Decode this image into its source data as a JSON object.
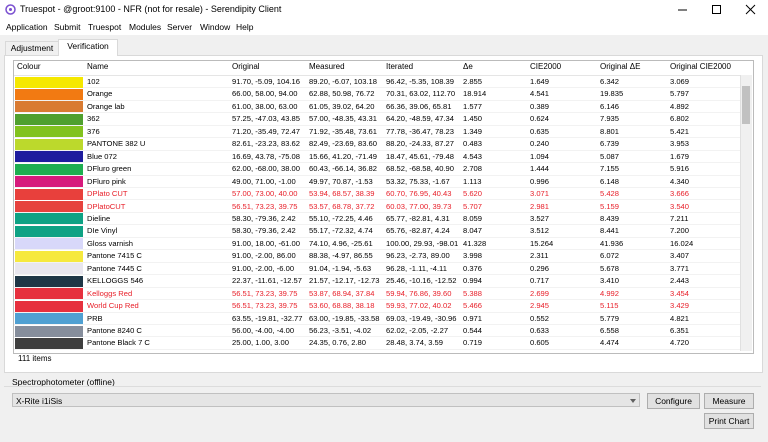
{
  "window": {
    "title": "Truespot - @groot:9100 - NFR (not for resale) - Serendipity Client"
  },
  "menu": [
    "Application",
    "Submit",
    "Truespot",
    "Modules",
    "Server",
    "Window",
    "Help"
  ],
  "tabs": {
    "items": [
      "Adjustment",
      "Verification"
    ],
    "active": 1
  },
  "table": {
    "columns": [
      "Colour",
      "Name",
      "Original",
      "Measured",
      "Iterated",
      "Δe",
      "CIE2000",
      "Original ΔE",
      "Original CIE2000"
    ],
    "rows": [
      {
        "swatch": "#f5e800",
        "cells": [
          "102",
          "91.70, -5.09, 104.16",
          "89.20, -6.07, 103.18",
          "96.42, -5.35, 108.39",
          "2.855",
          "1.649",
          "6.342",
          "3.069"
        ]
      },
      {
        "swatch": "#f27a12",
        "cells": [
          "Orange",
          "66.00, 58.00, 94.00",
          "62.88, 50.98, 76.72",
          "70.31, 63.02, 112.70",
          "18.914",
          "4.541",
          "19.835",
          "5.797"
        ]
      },
      {
        "swatch": "#d97b32",
        "cells": [
          "Orange lab",
          "61.00, 38.00, 63.00",
          "61.05, 39.02, 64.20",
          "66.36, 39.06, 65.81",
          "1.577",
          "0.389",
          "6.146",
          "4.892"
        ]
      },
      {
        "swatch": "#4fa02e",
        "cells": [
          "362",
          "57.25, -47.03, 43.85",
          "57.00, -48.35, 43.31",
          "64.20, -48.59, 47.34",
          "1.450",
          "0.624",
          "7.935",
          "6.802"
        ]
      },
      {
        "swatch": "#82c21e",
        "cells": [
          "376",
          "71.20, -35.49, 72.47",
          "71.92, -35.48, 73.61",
          "77.78, -36.47, 78.23",
          "1.349",
          "0.635",
          "8.801",
          "5.421"
        ]
      },
      {
        "swatch": "#bcd92c",
        "cells": [
          "PANTONE 382 U",
          "82.61, -23.23, 83.62",
          "82.49, -23.69, 83.60",
          "88.20, -24.33, 87.27",
          "0.483",
          "0.240",
          "6.739",
          "3.953"
        ]
      },
      {
        "swatch": "#1e1c9e",
        "cells": [
          "Blue 072",
          "16.69, 43.78, -75.08",
          "15.66, 41.20, -71.49",
          "18.47, 45.61, -79.48",
          "4.543",
          "1.094",
          "5.087",
          "1.679"
        ]
      },
      {
        "swatch": "#1eae50",
        "cells": [
          "DFluro green",
          "62.00, -68.00, 38.00",
          "60.43, -66.14, 36.82",
          "68.52, -68.58, 40.90",
          "2.708",
          "1.444",
          "7.155",
          "5.916"
        ]
      },
      {
        "swatch": "#d61a7c",
        "cells": [
          "DFluro pink",
          "49.00, 71.00, -1.00",
          "49.97, 70.87, -1.53",
          "53.32, 75.33, -1.67",
          "1.113",
          "0.996",
          "6.148",
          "4.340"
        ]
      },
      {
        "swatch": "#e8403c",
        "warning": true,
        "cells": [
          "DPlato CUT",
          "57.00, 73.00, 40.00",
          "53.94, 68.57, 38.39",
          "60.70, 76.95, 40.43",
          "5.620",
          "3.071",
          "5.428",
          "3.666"
        ]
      },
      {
        "swatch": "#e6423e",
        "warning": true,
        "cells": [
          "DPlatoCUT",
          "56.51, 73.23, 39.75",
          "53.57, 68.78, 37.72",
          "60.03, 77.00, 39.73",
          "5.707",
          "2.981",
          "5.159",
          "3.540"
        ]
      },
      {
        "swatch": "#0ea284",
        "cells": [
          "Dieline",
          "58.30, -79.36, 2.42",
          "55.10, -72.25, 4.46",
          "65.77, -82.81, 4.31",
          "8.059",
          "3.527",
          "8.439",
          "7.211"
        ]
      },
      {
        "swatch": "#0ea284",
        "cells": [
          "DIe Vinyl",
          "58.30, -79.36, 2.42",
          "55.17, -72.32, 4.74",
          "65.76, -82.87, 4.24",
          "8.047",
          "3.512",
          "8.441",
          "7.200"
        ]
      },
      {
        "swatch": "#d8d8fa",
        "cells": [
          "Gloss varnish",
          "91.00, 18.00, -61.00",
          "74.10, 4.96, -25.61",
          "100.00, 29.93, -98.01",
          "41.328",
          "15.264",
          "41.936",
          "16.024"
        ]
      },
      {
        "swatch": "#f6e93e",
        "cells": [
          "Pantone 7415 C",
          "91.00, -2.00, 86.00",
          "88.38, -4.97, 86.55",
          "96.23, -2.73, 89.00",
          "3.998",
          "2.311",
          "6.072",
          "3.407"
        ]
      },
      {
        "swatch": "#e8e6ee",
        "cells": [
          "Pantone 7445 C",
          "91.00, -2.00, -6.00",
          "91.04, -1.94, -5.63",
          "96.28, -1.11, -4.11",
          "0.376",
          "0.296",
          "5.678",
          "3.771"
        ]
      },
      {
        "swatch": "#1e3646",
        "cells": [
          "KELLOGGS 546",
          "22.37, -11.61, -12.57",
          "21.57, -12.17, -12.73",
          "25.46, -10.16, -12.52",
          "0.994",
          "0.717",
          "3.410",
          "2.443"
        ]
      },
      {
        "swatch": "#e6303e",
        "warning": true,
        "cells": [
          "Kelloggs Red",
          "56.51, 73.23, 39.75",
          "53.87, 68.94, 37.84",
          "59.94, 76.86, 39.60",
          "5.388",
          "2.699",
          "4.992",
          "3.454"
        ]
      },
      {
        "swatch": "#e6303e",
        "warning": true,
        "cells": [
          "World Cup Red",
          "56.51, 73.23, 39.75",
          "53.60, 68.88, 38.18",
          "59.93, 77.02, 40.02",
          "5.466",
          "2.945",
          "5.115",
          "3.429"
        ]
      },
      {
        "swatch": "#4fa0d2",
        "cells": [
          "PRB",
          "63.55, -19.81, -32.77",
          "63.00, -19.85, -33.58",
          "69.03, -19.49, -30.96",
          "0.971",
          "0.552",
          "5.779",
          "4.821"
        ]
      },
      {
        "swatch": "#868e9c",
        "cells": [
          "Pantone 8240 C",
          "56.00, -4.00, -4.00",
          "56.23, -3.51, -4.02",
          "62.02, -2.05, -2.27",
          "0.544",
          "0.633",
          "6.558",
          "6.351"
        ]
      },
      {
        "swatch": "#3e3e3e",
        "cells": [
          "Pantone Black 7 C",
          "25.00, 1.00, 3.00",
          "24.35, 0.76, 2.80",
          "28.48, 3.74, 3.59",
          "0.719",
          "0.605",
          "4.474",
          "4.720"
        ]
      }
    ],
    "count": "111 items"
  },
  "device": {
    "group": "Spectrophotometer (offline)",
    "selected": "X-Rite i1iSis",
    "buttons": [
      "Configure",
      "Measure",
      "Print Chart"
    ]
  }
}
